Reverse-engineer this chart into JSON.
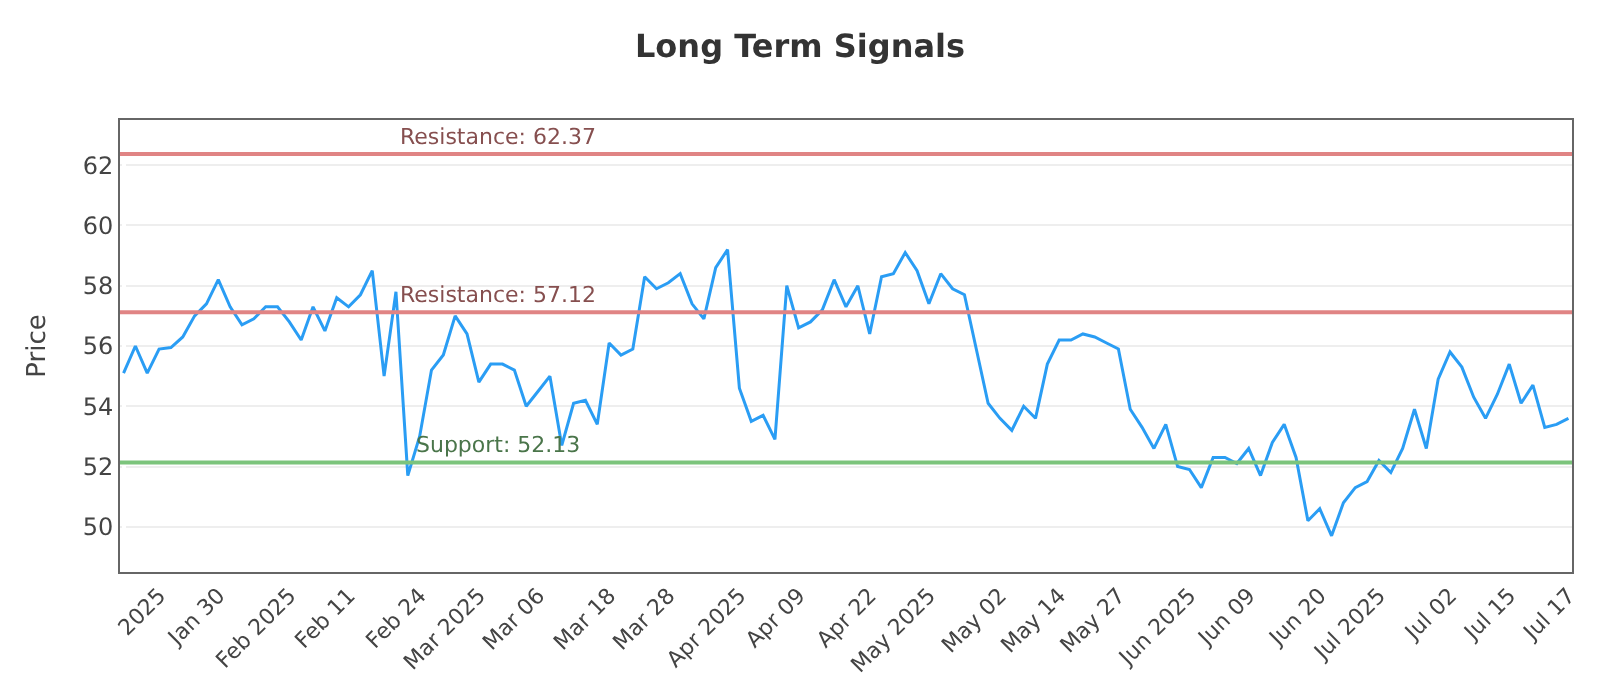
{
  "chart_data": {
    "type": "line",
    "title": "Long Term Signals",
    "ylabel": "Price",
    "categories": [
      null,
      null,
      null,
      "2025",
      null,
      null,
      null,
      null,
      "Jan 30",
      null,
      null,
      null,
      null,
      null,
      "Feb 2025",
      null,
      null,
      null,
      null,
      "Feb 11",
      null,
      null,
      null,
      null,
      null,
      "Feb 24",
      null,
      null,
      null,
      null,
      "Mar 2025",
      null,
      null,
      null,
      null,
      "Mar 06",
      null,
      null,
      null,
      null,
      null,
      "Mar 18",
      null,
      null,
      null,
      null,
      "Mar 28",
      null,
      null,
      null,
      null,
      null,
      "Apr 2025",
      null,
      null,
      null,
      null,
      "Apr 09",
      null,
      null,
      null,
      null,
      null,
      "Apr 22",
      null,
      null,
      null,
      null,
      "May 2025",
      null,
      null,
      null,
      null,
      null,
      "May 02",
      null,
      null,
      null,
      null,
      "May 14",
      null,
      null,
      null,
      null,
      "May 27",
      null,
      null,
      null,
      null,
      null,
      "Jun 2025",
      null,
      null,
      null,
      null,
      "Jun 09",
      null,
      null,
      null,
      null,
      null,
      "Jun 20",
      null,
      null,
      null,
      null,
      "Jul 2025",
      null,
      null,
      null,
      null,
      null,
      "Jul 02",
      null,
      null,
      null,
      null,
      "Jul 15",
      null,
      null,
      null,
      null,
      "Jul 17"
    ],
    "series": [
      {
        "color": "#2a9df4",
        "values": [
          55.1,
          56.0,
          55.1,
          55.9,
          55.95,
          56.3,
          57.0,
          57.4,
          58.2,
          57.3,
          56.7,
          56.9,
          57.3,
          57.3,
          56.8,
          56.2,
          57.3,
          56.5,
          57.6,
          57.3,
          57.7,
          58.5,
          55.0,
          57.8,
          51.7,
          53.0,
          55.2,
          55.7,
          57.0,
          56.4,
          54.8,
          55.4,
          55.4,
          55.2,
          54.0,
          54.5,
          55.0,
          52.7,
          54.1,
          54.2,
          53.4,
          56.1,
          55.7,
          55.9,
          58.3,
          57.9,
          58.1,
          58.4,
          57.4,
          56.9,
          58.6,
          59.2,
          54.6,
          53.5,
          53.7,
          52.9,
          58.0,
          56.6,
          56.8,
          57.2,
          58.2,
          57.3,
          58.0,
          56.4,
          58.3,
          58.4,
          59.1,
          58.5,
          57.4,
          58.4,
          57.9,
          57.7,
          55.9,
          54.1,
          53.6,
          53.2,
          54.0,
          53.6,
          55.4,
          56.2,
          56.2,
          56.4,
          56.3,
          56.1,
          55.9,
          53.9,
          53.3,
          52.6,
          53.4,
          52.0,
          51.9,
          51.3,
          52.3,
          52.3,
          52.1,
          52.6,
          51.7,
          52.8,
          53.4,
          52.3,
          50.2,
          50.6,
          49.7,
          50.8,
          51.3,
          51.5,
          52.2,
          51.8,
          52.6,
          53.9,
          52.6,
          54.9,
          55.8,
          55.3,
          54.3,
          53.6,
          54.4,
          55.4,
          54.1,
          54.7,
          53.3,
          53.4,
          53.6
        ]
      }
    ],
    "ylim": [
      48.5,
      63.5
    ],
    "yticks": [
      50,
      52,
      54,
      56,
      58,
      60,
      62
    ],
    "grid": "y",
    "marker": "none",
    "line_style": "solid",
    "ref_lines": [
      {
        "axis": "y",
        "value": 62.37,
        "label": "Resistance: 62.37",
        "color": "#e08484"
      },
      {
        "axis": "y",
        "value": 57.12,
        "label": "Resistance: 57.12",
        "color": "#e08484"
      },
      {
        "axis": "y",
        "value": 52.13,
        "label": "Support: 52.13",
        "color": "#7cc47c"
      }
    ]
  }
}
